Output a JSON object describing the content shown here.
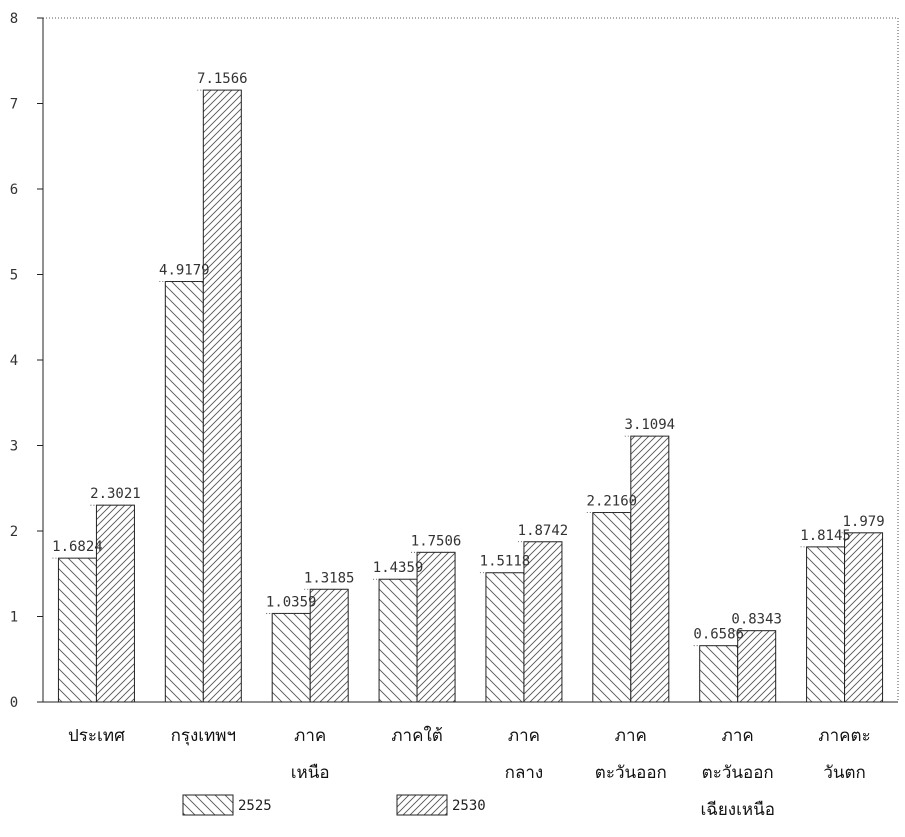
{
  "chart_data": {
    "type": "bar",
    "categories": [
      [
        "ประเทศ"
      ],
      [
        "กรุงเทพฯ"
      ],
      [
        "ภาค",
        "เหนือ"
      ],
      [
        "ภาคใต้"
      ],
      [
        "ภาค",
        "กลาง"
      ],
      [
        "ภาค",
        "ตะวันออก"
      ],
      [
        "ภาค",
        "ตะวันออก",
        "เฉียงเหนือ"
      ],
      [
        "ภาคตะ",
        "วันตก"
      ]
    ],
    "series": [
      {
        "name": "2525",
        "pattern": "backslash-hatch",
        "values": [
          1.6824,
          4.9179,
          1.0359,
          1.4359,
          1.5118,
          2.216,
          0.6586,
          1.8145
        ],
        "labels": [
          "1.6824",
          "4.9179",
          "1.0359",
          "1.4359",
          "1.5118",
          "2.2160",
          "0.6586",
          "1.8145"
        ]
      },
      {
        "name": "2530",
        "pattern": "slash-hatch",
        "values": [
          2.3021,
          7.1566,
          1.3185,
          1.7506,
          1.8742,
          3.1094,
          0.8343,
          1.979
        ],
        "labels": [
          "2.3021",
          "7.1566",
          "1.3185",
          "1.7506",
          "1.8742",
          "3.1094",
          "0.8343",
          "1.979"
        ]
      }
    ],
    "yticks": [
      "0",
      "1",
      "2",
      "3",
      "4",
      "5",
      "6",
      "7",
      "8"
    ],
    "ylim": [
      0,
      8
    ],
    "title": "",
    "xlabel": "",
    "ylabel": "",
    "grid": false,
    "legend": "bottom-center",
    "colors": {
      "bar_stroke": "#222222",
      "hatch": "#555555",
      "axis": "#222222",
      "label_leader": "#444444"
    }
  }
}
